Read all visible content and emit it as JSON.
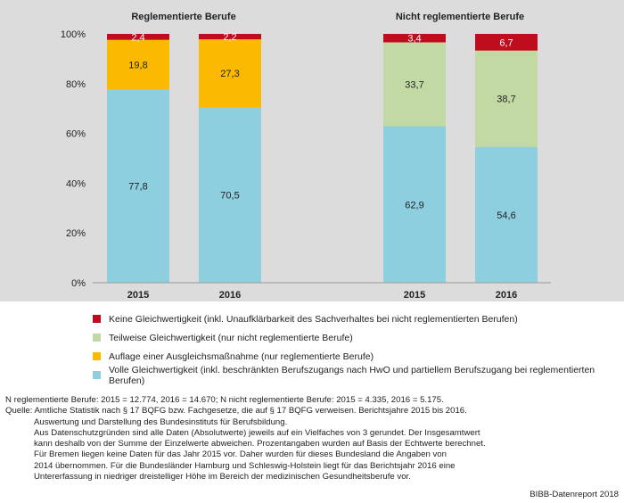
{
  "chart_data": {
    "type": "stacked-bar",
    "groups": [
      {
        "title": "Reglementierte Berufe",
        "categories": [
          "2015",
          "2016"
        ]
      },
      {
        "title": "Nicht reglementierte Berufe",
        "categories": [
          "2015",
          "2016"
        ]
      }
    ],
    "ylim": [
      0,
      100
    ],
    "yticks": [
      "0%",
      "20%",
      "40%",
      "60%",
      "80%",
      "100%"
    ],
    "series": [
      {
        "name": "Volle Gleichwertigkeit (inkl. beschränkten Berufszugangs nach HwO und partiellem Berufszugang bei reglementierten Berufen)",
        "color": "#8ecfdf",
        "values": [
          77.8,
          70.5,
          62.9,
          54.6
        ],
        "labels": [
          "77,8",
          "70,5",
          "62,9",
          "54,6"
        ]
      },
      {
        "name": "Auflage einer Ausgleichsmaßnahme (nur reglementierte Berufe)",
        "color": "#fbba00",
        "values": [
          19.8,
          27.3,
          0,
          0
        ],
        "labels": [
          "19,8",
          "27,3",
          "",
          ""
        ]
      },
      {
        "name": "Teilweise Gleichwertigkeit (nur nicht reglementierte Berufe)",
        "color": "#c3d9a3",
        "values": [
          0,
          0,
          33.7,
          38.7
        ],
        "labels": [
          "",
          "",
          "33,7",
          "38,7"
        ]
      },
      {
        "name": "Keine Gleichwertigkeit (inkl. Unaufklärbarkeit des Sachverhaltes bei nicht reglementierten Berufen)",
        "color": "#c00d1e",
        "values": [
          2.4,
          2.2,
          3.4,
          6.7
        ],
        "labels": [
          "2,4",
          "2,2",
          "3,4",
          "6,7"
        ]
      }
    ],
    "legend_order": [
      3,
      2,
      1,
      0
    ]
  },
  "notes": {
    "n_line": "N reglementierte Berufe: 2015 = 12.774,  2016 = 14.670; N nicht reglementierte Berufe: 2015 = 4.335, 2016 = 5.175.",
    "source_lines": [
      "Quelle: Amtliche Statistik nach § 17 BQFG bzw. Fachgesetze, die auf § 17 BQFG verweisen. Berichtsjahre 2015 bis 2016.",
      "Auswertung und Darstellung des Bundesinstituts für Berufsbildung.",
      "Aus Datenschutzgründen sind alle Daten (Absolutwerte) jeweils auf ein Vielfaches von 3 gerundet. Der Insgesamtwert",
      "kann deshalb von der Summe der Einzelwerte abweichen. Prozentangaben wurden auf Basis der Echtwerte berechnet.",
      "Für Bremen liegen keine Daten für das Jahr 2015 vor. Daher wurden für dieses Bundesland die Angaben von",
      "2014 übernommen. Für die Bundesländer Hamburg und Schleswig-Holstein liegt für das Berichtsjahr 2016 eine",
      "Untererfassung in niedriger dreistelliger Höhe im Bereich der medizinischen Gesundheitsberufe vor."
    ],
    "credit": "BIBB-Datenreport 2018"
  }
}
